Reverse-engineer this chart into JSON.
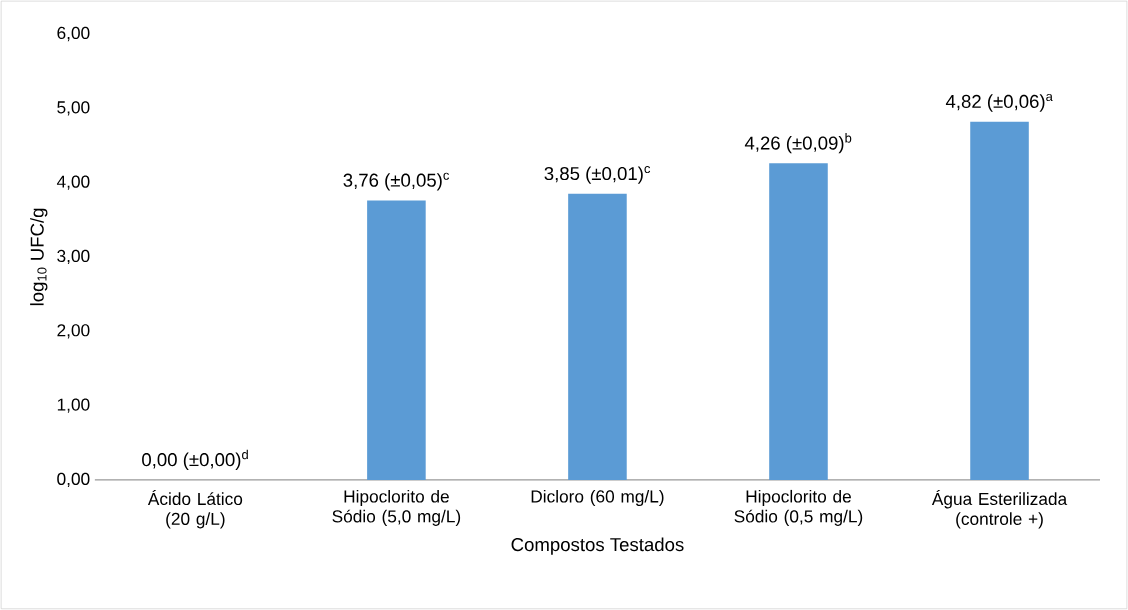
{
  "chart_data": {
    "type": "bar",
    "xlabel": "Compostos Testados",
    "ylabel": "log$_{10}$ UFC/g",
    "categories": [
      "Ácido Lático (20 g/L)",
      "Hipoclorito de Sódio (5,0 mg/L)",
      "Dicloro (60 mg/L)",
      "Hipoclorito de Sódio (0,5 mg/L)",
      "Água Esterilizada (controle +)"
    ],
    "values": [
      0,
      3.76,
      3.85,
      4.26,
      4.82
    ],
    "value_labels": [
      "0,00 (±0,00)$^{d}$",
      "3,76 (±0,05)$^{c}$",
      "3,85 (±0,01)$^{c}$",
      "4,26 (±0,09)$^{b}$",
      "4,82 (±0,06)$^{a}$"
    ],
    "color": "#5b9bd5",
    "ylim": [
      0,
      6
    ],
    "yticks": [
      {
        "value": 0,
        "label": "0,00"
      },
      {
        "value": 1,
        "label": "1,00"
      },
      {
        "value": 2,
        "label": "2,00"
      },
      {
        "value": 3,
        "label": "3,00"
      },
      {
        "value": 4,
        "label": "4,00"
      },
      {
        "value": 5,
        "label": "5,00"
      },
      {
        "value": 6,
        "label": "6,00"
      }
    ],
    "grid": false
  }
}
